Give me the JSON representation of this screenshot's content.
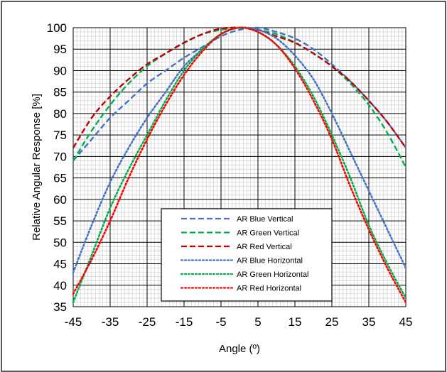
{
  "chart_data": {
    "type": "line",
    "title": "",
    "xlabel": "Angle (º)",
    "ylabel": "Relative Angular Response [%]",
    "xlim": [
      -45,
      45
    ],
    "ylim": [
      35,
      100
    ],
    "x_ticks": [
      -45,
      -35,
      -25,
      -15,
      -5,
      5,
      15,
      25,
      35,
      45
    ],
    "y_ticks": [
      35,
      40,
      45,
      50,
      55,
      60,
      65,
      70,
      75,
      80,
      85,
      90,
      95,
      100
    ],
    "grid": true,
    "legend_position": "inside-lower-center",
    "series": [
      {
        "name": "AR Blue Vertical",
        "color": "#4472c4",
        "dash": "dashed",
        "x": [
          -45,
          -40,
          -35,
          -30,
          -25,
          -20,
          -15,
          -10,
          -5,
          0,
          5,
          10,
          15,
          20,
          25,
          30,
          35,
          40,
          45
        ],
        "y": [
          69,
          74,
          79,
          83,
          87,
          90,
          93,
          95.5,
          98,
          99.5,
          100,
          99,
          97.5,
          95,
          91.5,
          87.5,
          83,
          78,
          72
        ]
      },
      {
        "name": "AR Green Vertical",
        "color": "#00b050",
        "dash": "dashed",
        "x": [
          -45,
          -40,
          -35,
          -30,
          -25,
          -20,
          -15,
          -10,
          -5,
          0,
          5,
          10,
          15,
          20,
          25,
          30,
          35,
          40,
          45
        ],
        "y": [
          69,
          76,
          82,
          87,
          91,
          94,
          96.5,
          98.5,
          99.5,
          100,
          99.5,
          98.5,
          96.5,
          94,
          91,
          87,
          82,
          75.5,
          67.5
        ]
      },
      {
        "name": "AR Red Vertical",
        "color": "#c00000",
        "dash": "dashed",
        "x": [
          -45,
          -40,
          -35,
          -30,
          -25,
          -20,
          -15,
          -10,
          -5,
          0,
          5,
          10,
          15,
          20,
          25,
          30,
          35,
          40,
          45
        ],
        "y": [
          72,
          79,
          84,
          88,
          91.5,
          94,
          96.5,
          98.5,
          99.8,
          100,
          99.5,
          98,
          96.5,
          94,
          91,
          87.5,
          83,
          78,
          72
        ]
      },
      {
        "name": "AR Blue Horizontal",
        "color": "#4472c4",
        "dash": "dotted",
        "x": [
          -45,
          -40,
          -35,
          -30,
          -25,
          -20,
          -15,
          -10,
          -5,
          0,
          5,
          10,
          15,
          20,
          25,
          30,
          35,
          40,
          45
        ],
        "y": [
          43,
          54,
          64,
          72,
          79,
          85,
          91,
          95,
          98.5,
          100,
          99.5,
          97.5,
          93.5,
          88,
          80,
          71,
          62,
          53,
          44
        ]
      },
      {
        "name": "AR Green Horizontal",
        "color": "#00b050",
        "dash": "dotted",
        "x": [
          -45,
          -40,
          -35,
          -30,
          -25,
          -20,
          -15,
          -10,
          -5,
          0,
          5,
          10,
          15,
          20,
          25,
          30,
          35,
          40,
          45
        ],
        "y": [
          36,
          47,
          58,
          67,
          75,
          83,
          90,
          95,
          98.5,
          100,
          99,
          96,
          91,
          84,
          75,
          65,
          54,
          45,
          37
        ]
      },
      {
        "name": "AR Red Horizontal",
        "color": "#ff0000",
        "dash": "dotted",
        "x": [
          -45,
          -40,
          -35,
          -30,
          -25,
          -20,
          -15,
          -10,
          -5,
          0,
          5,
          10,
          15,
          20,
          25,
          30,
          35,
          40,
          45
        ],
        "y": [
          38,
          46,
          55,
          65,
          74,
          82,
          89,
          94.5,
          98.5,
          100,
          99,
          96,
          90.5,
          83,
          74,
          63,
          53,
          44,
          36
        ]
      }
    ]
  }
}
